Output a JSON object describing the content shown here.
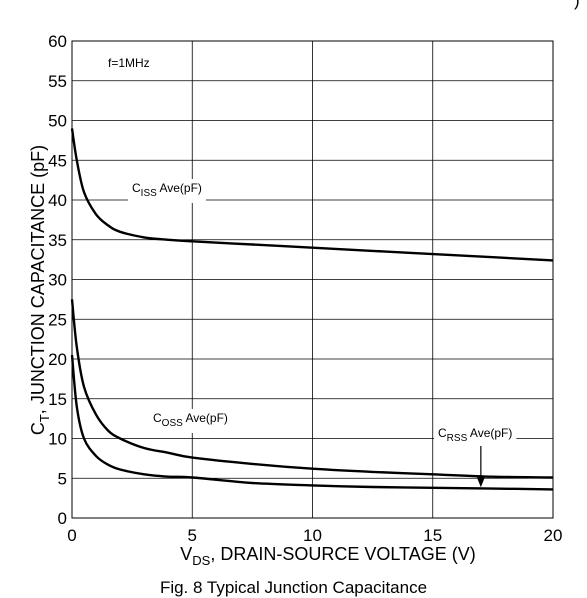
{
  "figure": {
    "caption": "Fig. 8 Typical Junction Capacitance",
    "top_right_mark": ")"
  },
  "chart_data": {
    "type": "line",
    "title": "",
    "xlabel": {
      "main": "V",
      "sub": "DS",
      "rest": ", DRAIN-SOURCE VOLTAGE (V)"
    },
    "ylabel": {
      "main": "C",
      "sub": "T",
      "rest": ", JUNCTION CAPACITANCE (pF)"
    },
    "xlim": [
      0,
      20
    ],
    "ylim": [
      0,
      60
    ],
    "xticks": [
      0,
      5,
      10,
      15,
      20
    ],
    "yticks": [
      0,
      5,
      10,
      15,
      20,
      25,
      30,
      35,
      40,
      45,
      50,
      55,
      60
    ],
    "grid": true,
    "annotations": {
      "frequency": "f=1MHz",
      "ciss_label": {
        "main": "C",
        "sub": "ISS",
        "rest": " Ave(pF)"
      },
      "coss_label": {
        "main": "C",
        "sub": "OSS",
        "rest": " Ave(pF)"
      },
      "crss_label": {
        "main": "C",
        "sub": "RSS",
        "rest": " Ave(pF)"
      }
    },
    "series": [
      {
        "name": "CISS Ave(pF)",
        "x": [
          0,
          0.2,
          0.5,
          1,
          1.5,
          2,
          3,
          4,
          5,
          7.5,
          10,
          12.5,
          15,
          17.5,
          20
        ],
        "y": [
          49,
          45,
          41,
          38.2,
          36.8,
          36,
          35.3,
          35,
          34.8,
          34.4,
          34,
          33.6,
          33.2,
          32.8,
          32.4
        ]
      },
      {
        "name": "COSS Ave(pF)",
        "x": [
          0,
          0.2,
          0.5,
          1,
          1.5,
          2,
          3,
          4,
          5,
          7.5,
          10,
          12.5,
          15,
          17.5,
          20
        ],
        "y": [
          27.5,
          21.5,
          16.5,
          13,
          11,
          10,
          8.8,
          8.2,
          7.6,
          6.8,
          6.2,
          5.8,
          5.5,
          5.2,
          5.1
        ]
      },
      {
        "name": "CRSS Ave(pF)",
        "x": [
          0,
          0.2,
          0.5,
          1,
          1.5,
          2,
          3,
          4,
          5,
          7.5,
          10,
          12.5,
          15,
          17.5,
          20
        ],
        "y": [
          20.5,
          14,
          10,
          7.8,
          6.7,
          6.1,
          5.5,
          5.2,
          5.1,
          4.4,
          4.1,
          3.9,
          3.8,
          3.7,
          3.6
        ]
      }
    ]
  }
}
